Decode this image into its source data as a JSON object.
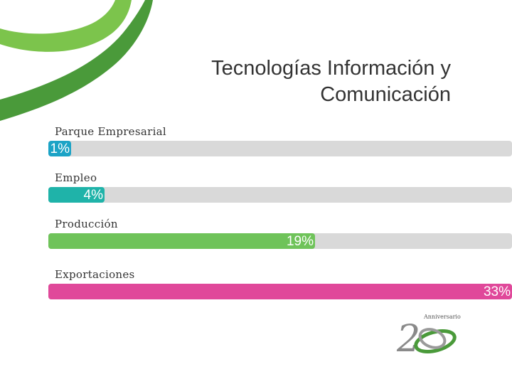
{
  "title_line1": "Tecnologías Información y",
  "title_line2": "Comunicación",
  "colors": {
    "swoosh_dark": "#4a9a3a",
    "swoosh_light": "#7cc44c",
    "track": "#d9d9d9"
  },
  "logo": {
    "text": "Anniversario",
    "numeral": "20"
  },
  "chart_data": {
    "type": "bar",
    "orientation": "horizontal",
    "categories": [
      "Parque Empresarial",
      "Empleo",
      "Producción",
      "Exportaciones"
    ],
    "values": [
      1,
      4,
      19,
      33
    ],
    "value_labels": [
      "1%",
      "4%",
      "19%",
      "33%"
    ],
    "colors": [
      "#1ba3c6",
      "#1fb3a9",
      "#6fc35a",
      "#e0489a"
    ],
    "xlim": [
      0,
      33
    ],
    "grid": false
  }
}
